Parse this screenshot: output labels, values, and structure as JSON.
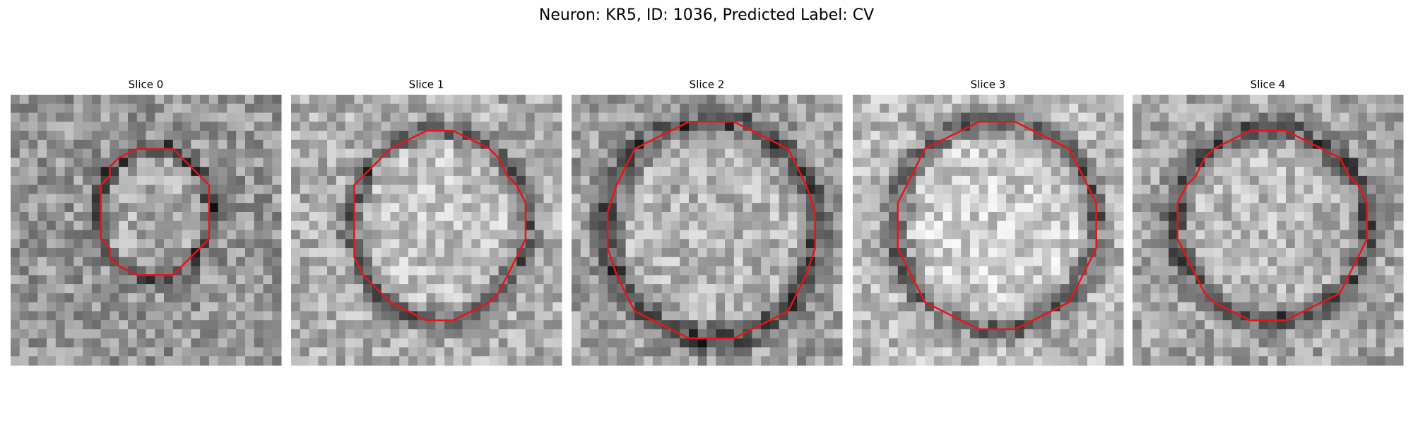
{
  "title": "Neuron: KR5, ID: 1036, Predicted Label: CV",
  "panels": [
    {
      "title": "Slice 0"
    },
    {
      "title": "Slice 1"
    },
    {
      "title": "Slice 2"
    },
    {
      "title": "Slice 3"
    },
    {
      "title": "Slice 4"
    }
  ]
}
